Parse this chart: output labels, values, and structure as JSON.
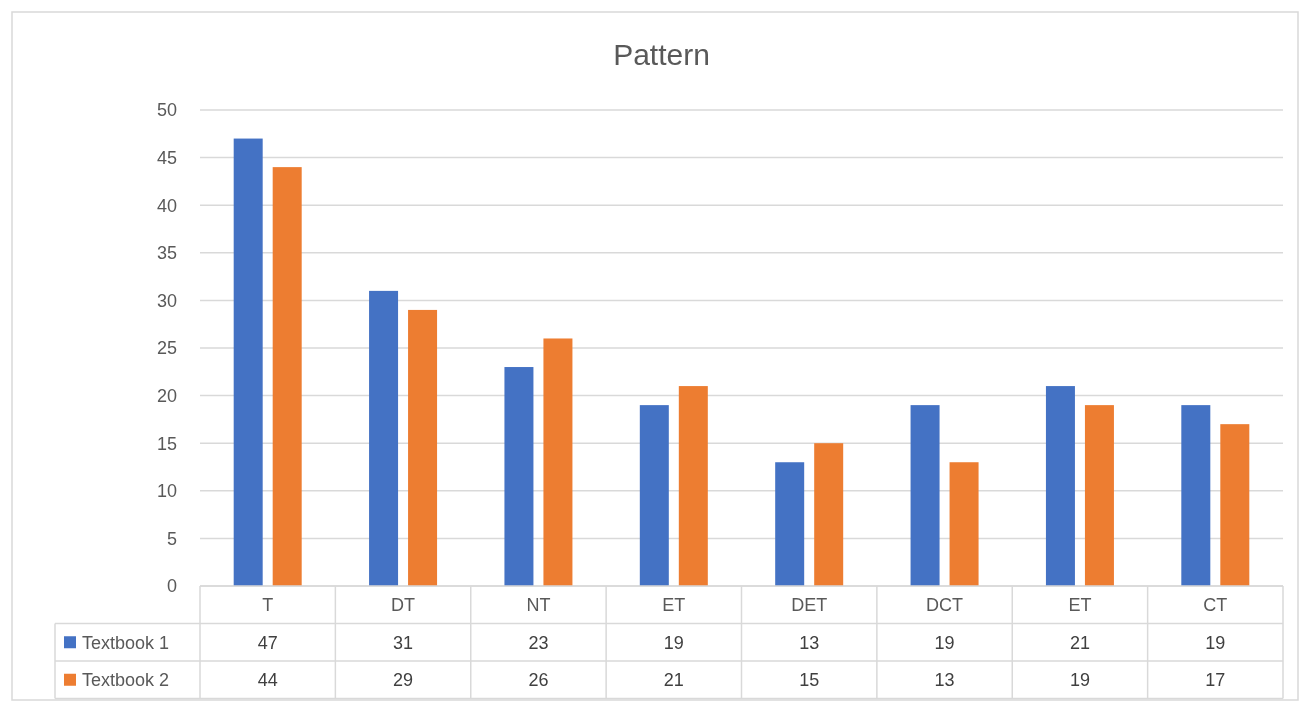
{
  "chart_data": {
    "type": "bar",
    "title": "Pattern",
    "categories": [
      "T",
      "DT",
      "NT",
      "ET",
      "DET",
      "DCT",
      "ET",
      "CT"
    ],
    "series": [
      {
        "name": "Textbook 1",
        "color": "#4472c4",
        "values": [
          47,
          31,
          23,
          19,
          13,
          19,
          21,
          19
        ]
      },
      {
        "name": "Textbook 2",
        "color": "#ed7d31",
        "values": [
          44,
          29,
          26,
          21,
          15,
          13,
          19,
          17
        ]
      }
    ],
    "ylim": [
      0,
      50
    ],
    "yticks": [
      0,
      5,
      10,
      15,
      20,
      25,
      30,
      35,
      40,
      45,
      50
    ],
    "grid": "y",
    "legend": "bottom",
    "data_labels": true
  }
}
